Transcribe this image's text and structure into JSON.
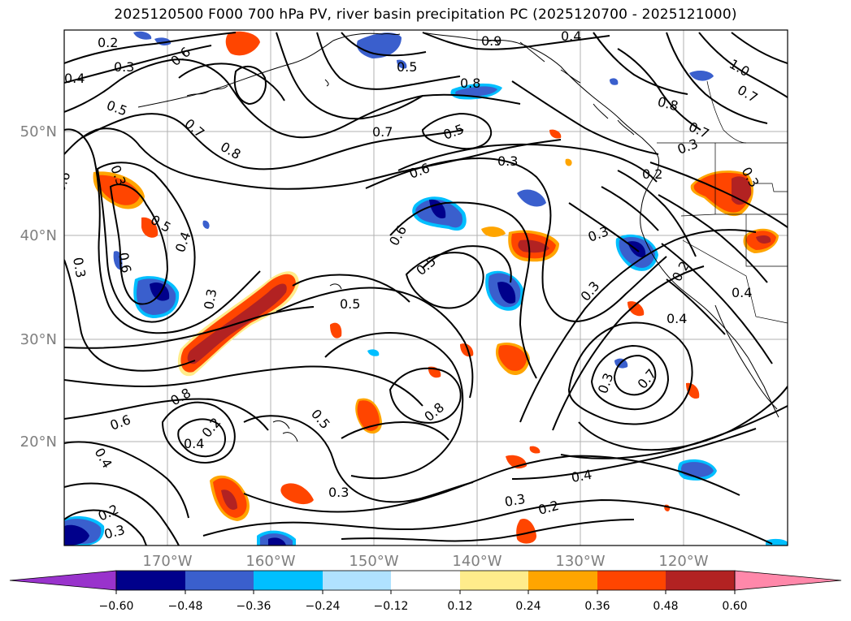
{
  "title": "2025120500 F000 700 hPa PV, river basin precipitation PC (2025120700 - 2025121000)",
  "map": {
    "lat_labels": [
      "50°N",
      "40°N",
      "30°N",
      "20°N"
    ],
    "lon_labels": [
      "170°W",
      "160°W",
      "150°W",
      "140°W",
      "130°W",
      "120°W"
    ],
    "contour_labels": [
      "0.2",
      "0.3",
      "0.4",
      "0.6",
      "0.9",
      "0.4",
      "1.0",
      "0.7",
      "0.5",
      "0.7",
      "0.8",
      "0.7",
      "0.5",
      "0.8",
      "0.5",
      "0.6",
      "0.3",
      "0.8",
      "0.7",
      "0.3",
      "0.3",
      "0.2",
      "0.3",
      "0.6",
      "0.3",
      "0.6",
      "0.5",
      "0.4",
      "0.3",
      "0.5",
      "0.6",
      "0.5",
      "0.3",
      "0.3",
      "0.4",
      "0.2",
      "0.4",
      "0.3",
      "0.7",
      "0.8",
      "0.5",
      "0.8",
      "0.6",
      "0.4",
      "0.2"
    ]
  },
  "colorbar": {
    "colors": [
      "#9933cc",
      "#00008b",
      "#3a5fcd",
      "#00bfff",
      "#b0e2ff",
      "#ffffff",
      "#ffec8b",
      "#ffa500",
      "#ff4500",
      "#b22222",
      "#ff88aa"
    ],
    "tick_labels": [
      "−0.60",
      "−0.48",
      "−0.36",
      "−0.24",
      "−0.12",
      "0.12",
      "0.24",
      "0.36",
      "0.48",
      "0.60"
    ]
  }
}
